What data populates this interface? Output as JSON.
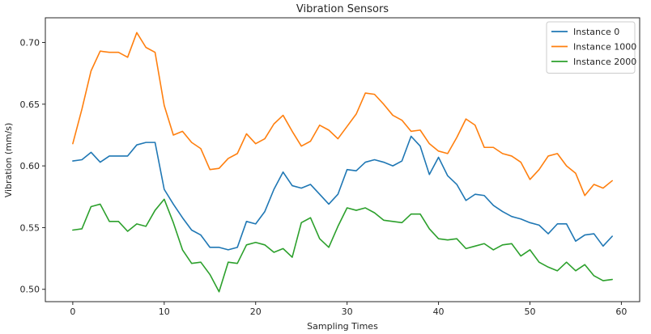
{
  "chart_data": {
    "type": "line",
    "title": "Vibration Sensors",
    "xlabel": "Sampling Times",
    "ylabel": "Vibration (mm/s)",
    "xlim": [
      -3,
      62
    ],
    "ylim": [
      0.49,
      0.72
    ],
    "x_ticks": [
      0,
      10,
      20,
      30,
      40,
      50,
      60
    ],
    "y_ticks": [
      0.5,
      0.55,
      0.6,
      0.65,
      0.7
    ],
    "y_tick_labels": [
      "0.50",
      "0.55",
      "0.60",
      "0.65",
      "0.70"
    ],
    "legend_position": "top-right",
    "grid": false,
    "x": [
      0,
      1,
      2,
      3,
      4,
      5,
      6,
      7,
      8,
      9,
      10,
      11,
      12,
      13,
      14,
      15,
      16,
      17,
      18,
      19,
      20,
      21,
      22,
      23,
      24,
      25,
      26,
      27,
      28,
      29,
      30,
      31,
      32,
      33,
      34,
      35,
      36,
      37,
      38,
      39,
      40,
      41,
      42,
      43,
      44,
      45,
      46,
      47,
      48,
      49,
      50,
      51,
      52,
      53,
      54,
      55,
      56,
      57,
      58,
      59
    ],
    "series": [
      {
        "name": "Instance 0",
        "color": "#1f77b4",
        "values": [
          0.604,
          0.605,
          0.611,
          0.603,
          0.608,
          0.608,
          0.608,
          0.617,
          0.619,
          0.619,
          0.581,
          0.569,
          0.558,
          0.548,
          0.544,
          0.534,
          0.534,
          0.532,
          0.534,
          0.555,
          0.553,
          0.563,
          0.581,
          0.595,
          0.584,
          0.582,
          0.585,
          0.577,
          0.569,
          0.577,
          0.597,
          0.596,
          0.603,
          0.605,
          0.603,
          0.6,
          0.604,
          0.624,
          0.616,
          0.593,
          0.607,
          0.592,
          0.585,
          0.572,
          0.577,
          0.576,
          0.568,
          0.563,
          0.559,
          0.557,
          0.554,
          0.552,
          0.545,
          0.553,
          0.553,
          0.539,
          0.544,
          0.545,
          0.535,
          0.543
        ]
      },
      {
        "name": "Instance 1000",
        "color": "#ff7f0e",
        "values": [
          0.618,
          0.646,
          0.677,
          0.693,
          0.692,
          0.692,
          0.688,
          0.708,
          0.696,
          0.692,
          0.649,
          0.625,
          0.628,
          0.619,
          0.614,
          0.597,
          0.598,
          0.606,
          0.61,
          0.626,
          0.618,
          0.622,
          0.634,
          0.641,
          0.628,
          0.616,
          0.62,
          0.633,
          0.629,
          0.622,
          0.632,
          0.642,
          0.659,
          0.658,
          0.65,
          0.641,
          0.637,
          0.628,
          0.629,
          0.618,
          0.612,
          0.61,
          0.623,
          0.638,
          0.633,
          0.615,
          0.615,
          0.61,
          0.608,
          0.603,
          0.589,
          0.597,
          0.608,
          0.61,
          0.6,
          0.594,
          0.576,
          0.585,
          0.582,
          0.588
        ]
      },
      {
        "name": "Instance 2000",
        "color": "#2ca02c",
        "values": [
          0.548,
          0.549,
          0.567,
          0.569,
          0.555,
          0.555,
          0.547,
          0.553,
          0.551,
          0.564,
          0.573,
          0.554,
          0.532,
          0.521,
          0.522,
          0.512,
          0.498,
          0.522,
          0.521,
          0.536,
          0.538,
          0.536,
          0.53,
          0.533,
          0.526,
          0.554,
          0.558,
          0.541,
          0.534,
          0.551,
          0.566,
          0.564,
          0.566,
          0.562,
          0.556,
          0.555,
          0.554,
          0.561,
          0.561,
          0.549,
          0.541,
          0.54,
          0.541,
          0.533,
          0.535,
          0.537,
          0.532,
          0.536,
          0.537,
          0.527,
          0.532,
          0.522,
          0.518,
          0.515,
          0.522,
          0.515,
          0.52,
          0.511,
          0.507,
          0.508
        ]
      }
    ]
  }
}
